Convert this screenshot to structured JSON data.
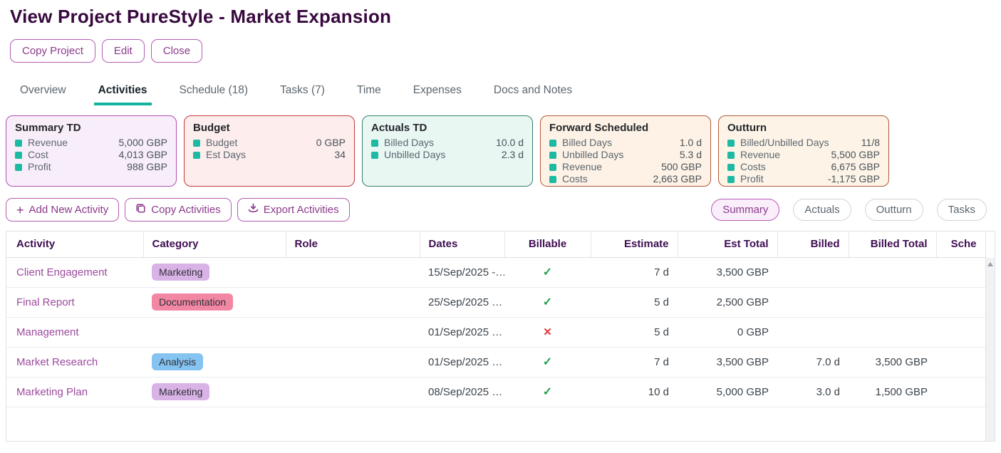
{
  "page": {
    "title": "View Project PureStyle - Market Expansion"
  },
  "project_actions": [
    {
      "label": "Copy Project"
    },
    {
      "label": "Edit"
    },
    {
      "label": "Close"
    }
  ],
  "tabs": [
    {
      "label": "Overview",
      "active": false
    },
    {
      "label": "Activities",
      "active": true
    },
    {
      "label": "Schedule (18)",
      "active": false
    },
    {
      "label": "Tasks (7)",
      "active": false
    },
    {
      "label": "Time",
      "active": false
    },
    {
      "label": "Expenses",
      "active": false
    },
    {
      "label": "Docs and Notes",
      "active": false
    }
  ],
  "summary_cards": [
    {
      "title": "Summary TD",
      "border": "#b44eb4",
      "bg": "#f8eefa",
      "items": [
        [
          "Revenue",
          "5,000 GBP"
        ],
        [
          "Cost",
          "4,013 GBP"
        ],
        [
          "Profit",
          "988 GBP"
        ]
      ]
    },
    {
      "title": "Budget",
      "border": "#c23b3b",
      "bg": "#fdeded",
      "items": [
        [
          "Budget",
          "0 GBP"
        ],
        [
          "Est Days",
          "34"
        ]
      ]
    },
    {
      "title": "Actuals TD",
      "border": "#35806d",
      "bg": "#e9f7f3",
      "items": [
        [
          "Billed Days",
          "10.0 d"
        ],
        [
          "Unbilled Days",
          "2.3 d"
        ]
      ]
    },
    {
      "title": "Forward Scheduled",
      "border": "#b05a38",
      "bg": "#fdf2e5",
      "items": [
        [
          "Billed Days",
          "1.0 d"
        ],
        [
          "Unbilled Days",
          "5.3 d"
        ],
        [
          "Revenue",
          "500 GBP"
        ],
        [
          "Costs",
          "2,663 GBP"
        ]
      ]
    },
    {
      "title": "Outturn",
      "border": "#b05a38",
      "bg": "#fdf4e7",
      "items": [
        [
          "Billed/Unbilled Days",
          "11/8"
        ],
        [
          "Revenue",
          "5,500 GBP"
        ],
        [
          "Costs",
          "6,675 GBP"
        ],
        [
          "Profit",
          "-1,175 GBP"
        ]
      ]
    }
  ],
  "toolbar": {
    "plus_glyph": "+",
    "add_label": "Add New Activity",
    "copy_label": "Copy Activities",
    "export_label": "Export Activities"
  },
  "view_filters": [
    {
      "label": "Summary",
      "active": true
    },
    {
      "label": "Actuals",
      "active": false
    },
    {
      "label": "Outturn",
      "active": false
    },
    {
      "label": "Tasks",
      "active": false
    }
  ],
  "activities_table": {
    "columns": [
      "Activity",
      "Category",
      "Role",
      "Dates",
      "Billable",
      "Estimate",
      "Est Total",
      "Billed",
      "Billed Total",
      "Sche"
    ],
    "billable_icons": {
      "yes": "✓",
      "no": "✕"
    },
    "rows": [
      {
        "activity": "Client Engagement",
        "category": "Marketing",
        "category_bg": "#d9b2e6",
        "role": "",
        "dates": "15/Sep/2025 -…",
        "billable": "yes",
        "estimate": "7 d",
        "est_total": "3,500 GBP",
        "billed": "",
        "billed_total": "",
        "schedule": ""
      },
      {
        "activity": "Final Report",
        "category": "Documentation",
        "category_bg": "#f287a3",
        "role": "",
        "dates": "25/Sep/2025 …",
        "billable": "yes",
        "estimate": "5 d",
        "est_total": "2,500 GBP",
        "billed": "",
        "billed_total": "",
        "schedule": ""
      },
      {
        "activity": "Management",
        "category": "",
        "category_bg": "",
        "role": "",
        "dates": "01/Sep/2025 …",
        "billable": "no",
        "estimate": "5 d",
        "est_total": "0 GBP",
        "billed": "",
        "billed_total": "",
        "schedule": ""
      },
      {
        "activity": "Market Research",
        "category": "Analysis",
        "category_bg": "#85c3f0",
        "role": "",
        "dates": "01/Sep/2025 …",
        "billable": "yes",
        "estimate": "7 d",
        "est_total": "3,500 GBP",
        "billed": "7.0 d",
        "billed_total": "3,500 GBP",
        "schedule": ""
      },
      {
        "activity": "Marketing Plan",
        "category": "Marketing",
        "category_bg": "#d9b2e6",
        "role": "",
        "dates": "08/Sep/2025 …",
        "billable": "yes",
        "estimate": "10 d",
        "est_total": "5,000 GBP",
        "billed": "3.0 d",
        "billed_total": "1,500 GBP",
        "schedule": ""
      }
    ]
  },
  "colors": {
    "accent_purple": "#8b3a8b",
    "tab_active_underline": "#14b5a0",
    "bullet_teal": "#1db9a2",
    "check_green": "#22a14f",
    "cross_red": "#e23a40",
    "table_header_text": "#3f0e52"
  }
}
